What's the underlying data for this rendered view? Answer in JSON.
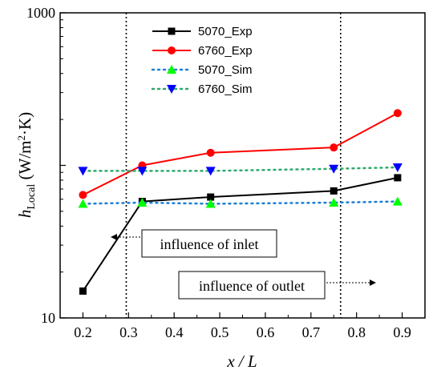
{
  "chart_data": {
    "type": "line",
    "xlabel": "x / L",
    "ylabel": "h_Local (W/m²·K)",
    "xlim": [
      0.15,
      0.95
    ],
    "ylim": [
      10,
      1000
    ],
    "yscale": "log",
    "xticks": [
      "0.2",
      "0.3",
      "0.4",
      "0.5",
      "0.6",
      "0.7",
      "0.8",
      "0.9"
    ],
    "yticks": [
      "10",
      "1000"
    ],
    "legend_position": "top-center",
    "vlines": [
      0.295,
      0.765
    ],
    "series": [
      {
        "name": "5070_Exp",
        "marker": "square",
        "line": "solid",
        "color": "#000000",
        "x": [
          0.2,
          0.33,
          0.48,
          0.75,
          0.89
        ],
        "y": [
          15,
          58,
          62,
          68,
          83
        ]
      },
      {
        "name": "6760_Exp",
        "marker": "circle",
        "line": "solid",
        "color": "#ff0000",
        "x": [
          0.2,
          0.33,
          0.48,
          0.75,
          0.89
        ],
        "y": [
          64,
          100,
          121,
          131,
          220
        ]
      },
      {
        "name": "5070_Sim",
        "marker": "triangle-up",
        "line": "dotted",
        "color": "#00ff00",
        "line_color": "#1e7fd4",
        "x": [
          0.2,
          0.33,
          0.48,
          0.75,
          0.89
        ],
        "y": [
          56,
          57,
          56,
          57,
          58
        ]
      },
      {
        "name": "6760_Sim",
        "marker": "triangle-down",
        "line": "dotted",
        "color": "#0000ff",
        "line_color": "#2eaa6e",
        "x": [
          0.2,
          0.33,
          0.48,
          0.75,
          0.89
        ],
        "y": [
          92,
          92,
          92,
          95,
          97
        ]
      }
    ],
    "annotations": [
      {
        "text": "influence of inlet"
      },
      {
        "text": "influence of outlet"
      }
    ]
  }
}
